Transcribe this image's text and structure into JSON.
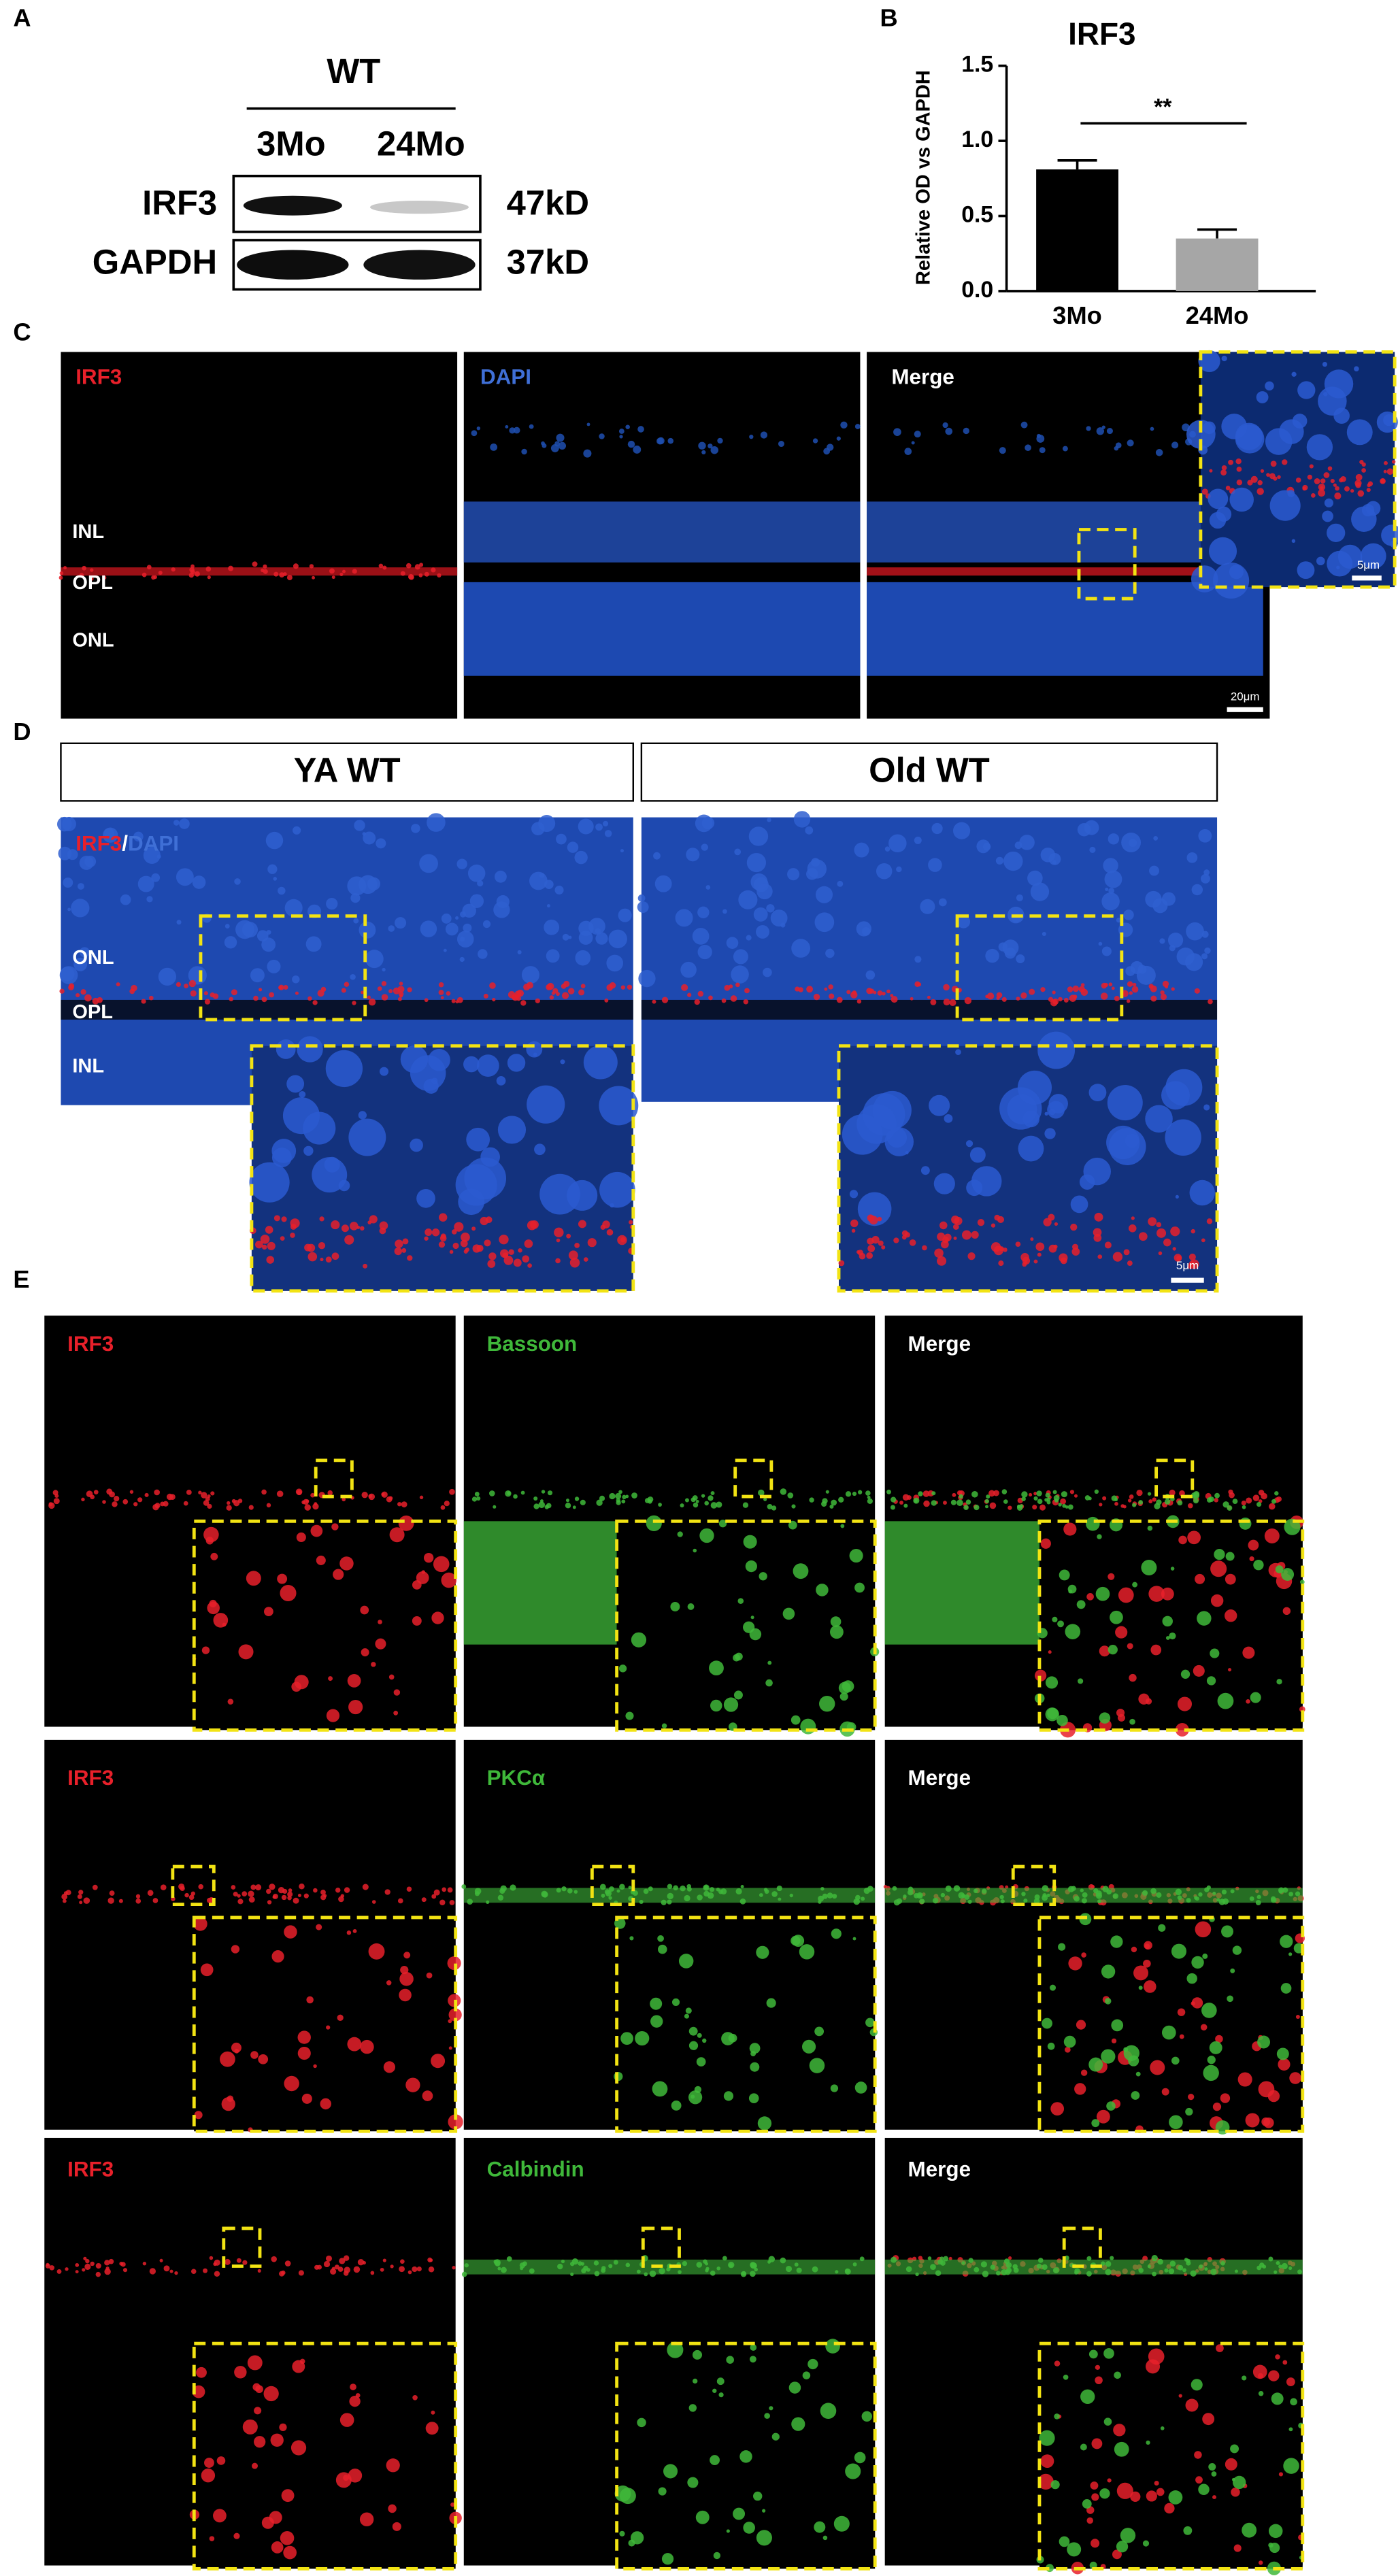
{
  "panel_labels": [
    "A",
    "B",
    "C",
    "D",
    "E"
  ],
  "blot": {
    "group": "WT",
    "lanes": [
      "3Mo",
      "24Mo"
    ],
    "rows": [
      {
        "protein": "IRF3",
        "size": "47kD"
      },
      {
        "protein": "GAPDH",
        "size": "37kD"
      }
    ]
  },
  "chart_data": {
    "type": "bar",
    "title": "IRF3",
    "y_label": "Relative OD vs GAPDH",
    "categories": [
      "3Mo",
      "24Mo"
    ],
    "values": [
      0.81,
      0.35
    ],
    "errors": [
      0.06,
      0.06
    ],
    "colors": [
      "#000000",
      "#a6a6a6"
    ],
    "ylim": [
      0,
      1.5
    ],
    "yticks": [
      {
        "value": 0,
        "label": "0.0"
      },
      {
        "value": 0.5,
        "label": "0.5"
      },
      {
        "value": 1,
        "label": "1.0"
      },
      {
        "value": 1.5,
        "label": "1.5"
      }
    ],
    "annotation": "**"
  },
  "panel_c": {
    "labels": [
      "IRF3",
      "DAPI",
      "Merge"
    ],
    "layers": [
      "INL",
      "OPL",
      "ONL"
    ],
    "scale_bars": [
      "20μm",
      "5μm"
    ]
  },
  "panel_d": {
    "headers": [
      "YA WT",
      "Old WT"
    ],
    "stain": [
      "IRF3",
      "/",
      "DAPI"
    ],
    "layers": [
      "ONL",
      "OPL",
      "INL"
    ],
    "scale_bar": "5μm"
  },
  "panel_e": {
    "rows": [
      [
        "IRF3",
        "Bassoon",
        "Merge"
      ],
      [
        "IRF3",
        "PKCα",
        "Merge"
      ],
      [
        "IRF3",
        "Calbindin",
        "Merge"
      ]
    ]
  }
}
